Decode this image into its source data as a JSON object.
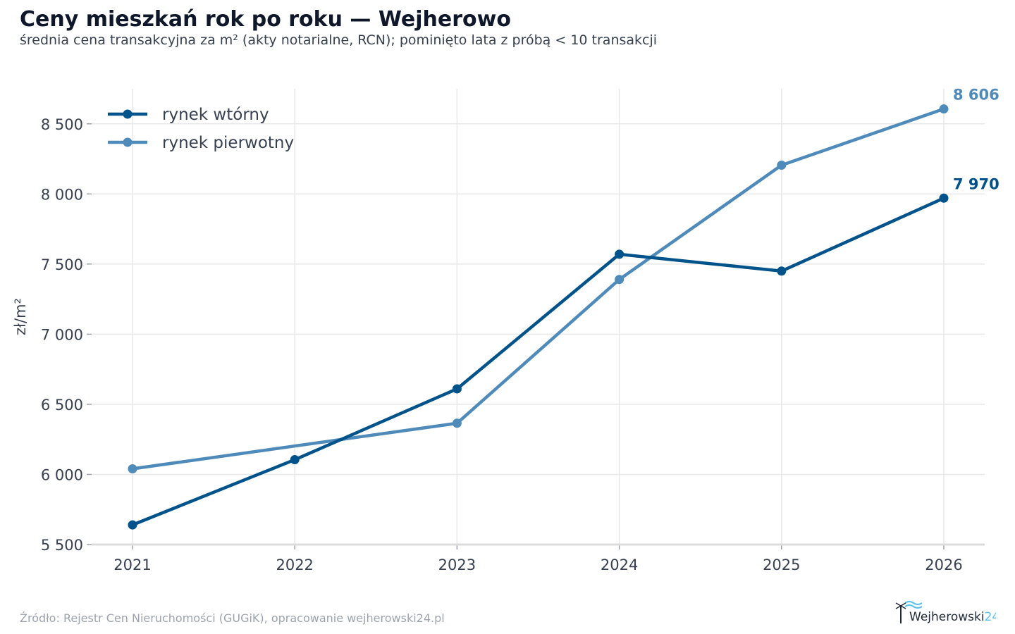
{
  "header": {
    "title": "Ceny mieszkań rok po roku — Wejherowo",
    "subtitle": "średnia cena transakcyjna za m² (akty notarialne, RCN); pominięto lata z próbą < 10 transakcji"
  },
  "footer": {
    "source": "Źródło: Rejestr Cen Nieruchomości (GUGiK), opracowanie wejherowski24.pl",
    "logo_text": "Wejherowski24"
  },
  "chart_data": {
    "type": "line",
    "title": "Ceny mieszkań rok po roku — Wejherowo",
    "subtitle": "średnia cena transakcyjna za m² (akty notarialne, RCN); pominięto lata z próbą < 10 transakcji",
    "xlabel": "",
    "ylabel": "zł/m²",
    "x": [
      "2021",
      "2022",
      "2023",
      "2024",
      "2025",
      "2026"
    ],
    "ylim": [
      5500,
      8750
    ],
    "yticks": [
      5500,
      6000,
      6500,
      7000,
      7500,
      8000,
      8500
    ],
    "ytick_labels": [
      "5 500",
      "6 000",
      "6 500",
      "7 000",
      "7 500",
      "8 000",
      "8 500"
    ],
    "grid": true,
    "legend_position": "top-left",
    "series": [
      {
        "name": "rynek wtórny",
        "color": "#00538a",
        "values": [
          5640,
          6105,
          6610,
          7570,
          7450,
          7970
        ],
        "end_label": "7 970"
      },
      {
        "name": "rynek pierwotny",
        "color": "#4f8bba",
        "values": [
          6040,
          null,
          6365,
          7390,
          8205,
          8606
        ],
        "end_label": "8 606"
      }
    ]
  }
}
